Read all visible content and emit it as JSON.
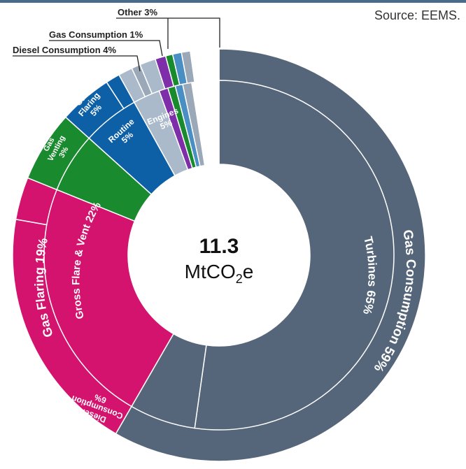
{
  "source": "Source: EEMS.",
  "center": {
    "value": "11.3",
    "unit_prefix": "MtCO",
    "unit_sub": "2",
    "unit_suffix": "e"
  },
  "colors": {
    "gas_consumption": "#56667a",
    "gas_flaring": "#d4136f",
    "gas_venting": "#d4136f",
    "diesel": "#0d5fa6",
    "gas_consumption_small": "#0d5fa6",
    "other_light": "#aabacb",
    "other_purple": "#7d2ea8",
    "other_green": "#1a8a2e",
    "other_blue": "#4a8fc4",
    "other_grey": "#9aa8b8",
    "flaring_routine": "#1a8a2e",
    "divider": "#ffffff"
  },
  "chart_data": {
    "type": "pie",
    "title": "",
    "total": "11.3 MtCO2e",
    "outer_ring": [
      {
        "label": "Gas Consumption 59%",
        "value": 59
      },
      {
        "label": "Gas Flaring 19%",
        "value": 19
      },
      {
        "label": "Gas Venting 3%",
        "value": 3
      },
      {
        "label": "Gas Flaring 5%",
        "value": 5
      },
      {
        "label": "Diesel Consumption 4%",
        "value": 4
      },
      {
        "label": "Gas Consumption 1%",
        "value": 1
      },
      {
        "label": "Other 3%",
        "value": 3
      }
    ],
    "inner_ring": [
      {
        "label": "Turbines 65%",
        "value": 65
      },
      {
        "label": "Diesel Consumption 6%",
        "value": 6
      },
      {
        "label": "Gross Flare & Vent 22%",
        "value": 22
      },
      {
        "label": "Routine 5%",
        "value": 5
      },
      {
        "label": "Engines 5%",
        "value": 5
      }
    ]
  },
  "callouts": {
    "other": "Other 3%",
    "gas_consumption": "Gas Consumption 1%",
    "diesel_consumption": "Diesel Consumption 4%"
  },
  "labels": {
    "gas_consumption_outer": "Gas Consumption 59%",
    "turbines": "Turbines 65%",
    "gas_flaring_outer": "Gas Flaring 19%",
    "gross_flare_vent": "Gross Flare & Vent 22%",
    "diesel_inner_line1": "Diesel",
    "diesel_inner_line2": "Consumption",
    "diesel_inner_line3": "6%",
    "venting_line1": "Gas",
    "venting_line2": "Venting",
    "venting_line3": "3%",
    "flaring5_line1": "Gas",
    "flaring5_line2": "Flaring",
    "flaring5_line3": "5%",
    "routine_line1": "Routine",
    "routine_line2": "5%",
    "engines_line1": "Engines",
    "engines_line2": "5%"
  }
}
